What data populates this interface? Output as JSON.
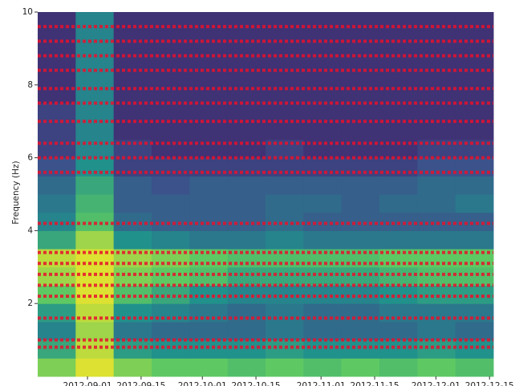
{
  "chart_data": {
    "type": "spectrogram",
    "ylabel": "Frequency (Hz)",
    "xlim": [
      "2012-08-19",
      "2012-12-16"
    ],
    "xticks": [
      "2012-09-01",
      "2012-09-15",
      "2012-10-01",
      "2012-10-15",
      "2012-11-01",
      "2012-11-15",
      "2012-12-01",
      "2012-12-15"
    ],
    "ylim": [
      0,
      10
    ],
    "yticks": [
      2,
      4,
      6,
      8,
      10
    ],
    "colormap": [
      "#440154",
      "#3b528b",
      "#21918c",
      "#5ec962",
      "#fde725"
    ],
    "z": [
      [
        0.8,
        0.95,
        0.8,
        0.75,
        0.75,
        0.7,
        0.75,
        0.7,
        0.75,
        0.7,
        0.75,
        0.7
      ],
      [
        0.6,
        0.9,
        0.55,
        0.5,
        0.5,
        0.5,
        0.55,
        0.5,
        0.5,
        0.5,
        0.55,
        0.5
      ],
      [
        0.45,
        0.85,
        0.4,
        0.35,
        0.35,
        0.35,
        0.4,
        0.35,
        0.35,
        0.35,
        0.4,
        0.35
      ],
      [
        0.55,
        0.9,
        0.5,
        0.45,
        0.4,
        0.35,
        0.4,
        0.35,
        0.35,
        0.4,
        0.4,
        0.4
      ],
      [
        0.75,
        0.95,
        0.7,
        0.6,
        0.5,
        0.45,
        0.45,
        0.45,
        0.45,
        0.5,
        0.55,
        0.55
      ],
      [
        0.85,
        0.95,
        0.8,
        0.75,
        0.7,
        0.6,
        0.6,
        0.6,
        0.6,
        0.65,
        0.7,
        0.7
      ],
      [
        0.9,
        0.95,
        0.85,
        0.8,
        0.75,
        0.7,
        0.7,
        0.7,
        0.7,
        0.75,
        0.75,
        0.75
      ],
      [
        0.6,
        0.85,
        0.5,
        0.45,
        0.4,
        0.4,
        0.45,
        0.4,
        0.4,
        0.4,
        0.4,
        0.4
      ],
      [
        0.45,
        0.7,
        0.35,
        0.3,
        0.3,
        0.3,
        0.35,
        0.3,
        0.3,
        0.3,
        0.3,
        0.3
      ],
      [
        0.4,
        0.65,
        0.3,
        0.3,
        0.3,
        0.3,
        0.35,
        0.35,
        0.3,
        0.35,
        0.35,
        0.4
      ],
      [
        0.35,
        0.6,
        0.3,
        0.25,
        0.3,
        0.3,
        0.3,
        0.3,
        0.3,
        0.3,
        0.35,
        0.35
      ],
      [
        0.25,
        0.5,
        0.2,
        0.2,
        0.2,
        0.2,
        0.2,
        0.2,
        0.2,
        0.2,
        0.25,
        0.25
      ],
      [
        0.2,
        0.45,
        0.2,
        0.15,
        0.15,
        0.15,
        0.2,
        0.15,
        0.15,
        0.15,
        0.2,
        0.2
      ],
      [
        0.2,
        0.45,
        0.15,
        0.15,
        0.15,
        0.15,
        0.15,
        0.15,
        0.15,
        0.15,
        0.15,
        0.15
      ],
      [
        0.2,
        0.45,
        0.15,
        0.15,
        0.15,
        0.15,
        0.15,
        0.15,
        0.15,
        0.15,
        0.15,
        0.15
      ],
      [
        0.15,
        0.45,
        0.15,
        0.15,
        0.15,
        0.15,
        0.15,
        0.15,
        0.15,
        0.15,
        0.15,
        0.15
      ],
      [
        0.15,
        0.45,
        0.15,
        0.15,
        0.15,
        0.15,
        0.15,
        0.15,
        0.15,
        0.15,
        0.15,
        0.15
      ],
      [
        0.15,
        0.45,
        0.15,
        0.15,
        0.15,
        0.15,
        0.15,
        0.15,
        0.15,
        0.15,
        0.15,
        0.15
      ],
      [
        0.15,
        0.45,
        0.15,
        0.15,
        0.15,
        0.15,
        0.15,
        0.15,
        0.15,
        0.15,
        0.15,
        0.15
      ],
      [
        0.15,
        0.45,
        0.15,
        0.15,
        0.15,
        0.15,
        0.15,
        0.15,
        0.15,
        0.15,
        0.15,
        0.15
      ]
    ],
    "markers": {
      "color": "#e8112d",
      "y": [
        9.6,
        9.2,
        8.8,
        8.4,
        7.9,
        7.5,
        7.0,
        6.4,
        6.0,
        5.6,
        4.2,
        3.4,
        3.1,
        2.8,
        2.5,
        2.2,
        1.6,
        1.0,
        0.8
      ]
    }
  }
}
